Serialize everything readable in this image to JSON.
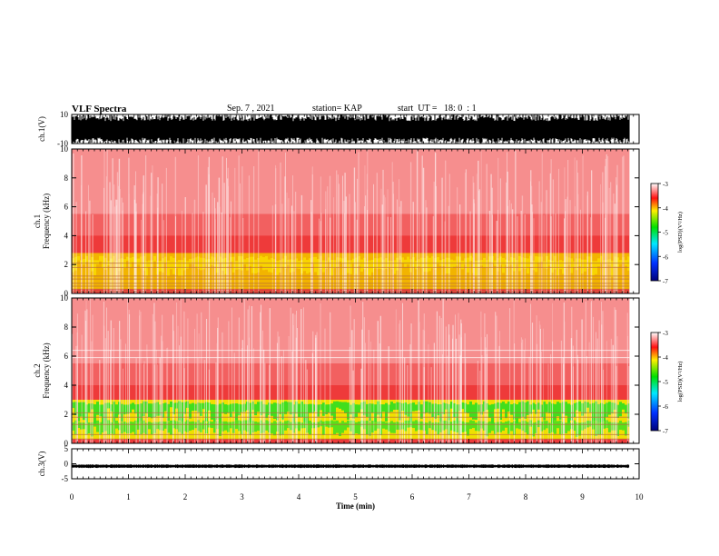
{
  "header": {
    "title": "VLF Spectra",
    "date": "Sep. 7 , 2021",
    "station": "station= KAP",
    "start": "start  UT =   18: 0  : 1"
  },
  "chart_data": [
    {
      "type": "line",
      "ylabel": "ch.1(V)",
      "ylim": [
        -10,
        10
      ],
      "yticks": [
        "10",
        "-10"
      ],
      "xlim": [
        0,
        10
      ]
    },
    {
      "type": "heatmap",
      "ylabel": "ch.1\nFrequency  (kHz)",
      "ylim": [
        0,
        10
      ],
      "yticks": [
        "10",
        "8",
        "6",
        "4",
        "2",
        "0"
      ],
      "xlim": [
        0,
        10
      ],
      "colorbar": {
        "label": "log(PSD)(V²/Hz)",
        "ticks": [
          "-3",
          "-4",
          "-5",
          "-6",
          "-7"
        ],
        "range": [
          -7,
          -3
        ]
      }
    },
    {
      "type": "heatmap",
      "ylabel": "ch.2\nFrequency  (kHz)",
      "ylim": [
        0,
        10
      ],
      "yticks": [
        "10",
        "8",
        "6",
        "4",
        "2",
        "0"
      ],
      "xlim": [
        0,
        10
      ],
      "colorbar": {
        "label": "log(PSD)(V²/Hz)",
        "ticks": [
          "-3",
          "-4",
          "-5",
          "-6",
          "-7"
        ],
        "range": [
          -7,
          -3
        ]
      }
    },
    {
      "type": "line",
      "ylabel": "ch.3(V)",
      "ylim": [
        -5,
        5
      ],
      "yticks": [
        "5",
        "0",
        "-5"
      ],
      "xlim": [
        0,
        10
      ]
    }
  ],
  "xaxis": {
    "label": "Time  (min)",
    "ticks": [
      "0",
      "1",
      "2",
      "3",
      "4",
      "5",
      "6",
      "7",
      "8",
      "9",
      "10"
    ],
    "data_end_min": 9.83
  }
}
